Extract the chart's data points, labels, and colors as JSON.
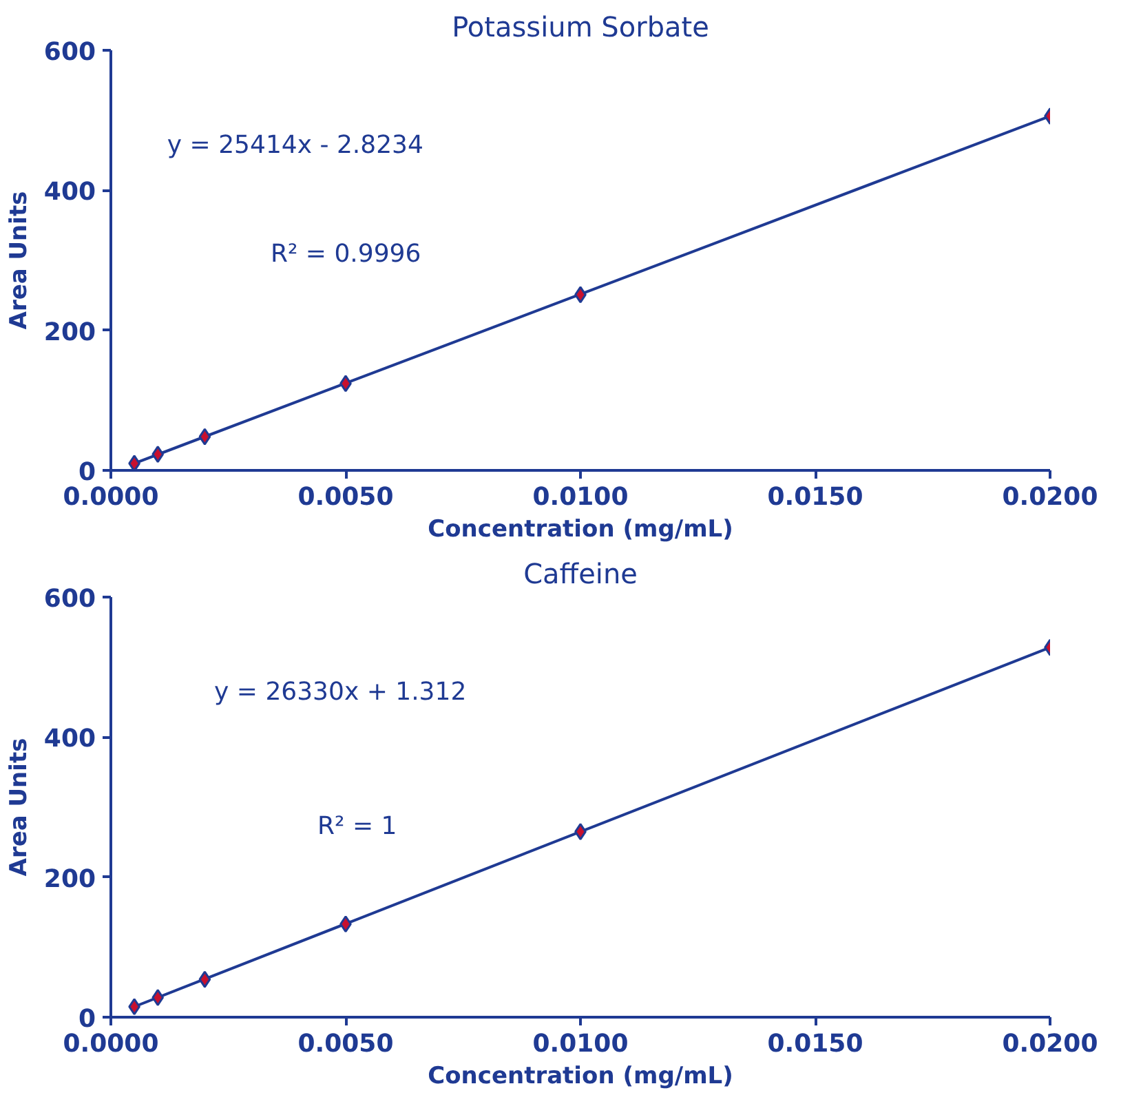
{
  "chart_data": [
    {
      "type": "scatter",
      "title": "Potassium Sorbate",
      "xlabel": "Concentration (mg/mL)",
      "ylabel": "Area Units",
      "xlim": [
        0,
        0.02
      ],
      "xticks": [
        {
          "value": 0,
          "label": "0.0000"
        },
        {
          "value": 0.005,
          "label": "0.0050"
        },
        {
          "value": 0.01,
          "label": "0.0100"
        },
        {
          "value": 0.015,
          "label": "0.0150"
        },
        {
          "value": 0.02,
          "label": "0.0200"
        }
      ],
      "ylim": [
        0,
        600
      ],
      "yticks": [
        0,
        200,
        400,
        600
      ],
      "grid": false,
      "annotations": [
        "y = 25414x - 2.8234",
        "R² = 0.9996"
      ],
      "series": [
        {
          "marker": "diamond",
          "color": "#c8102e",
          "x": [
            0.0005,
            0.001,
            0.002,
            0.005,
            0.01,
            0.02
          ],
          "values": [
            10,
            23,
            48,
            124,
            251,
            506
          ]
        },
        {
          "type": "line",
          "color": "#1f3a93",
          "x": [
            0.0005,
            0.02
          ],
          "values": [
            10,
            506
          ]
        }
      ]
    },
    {
      "type": "scatter",
      "title": "Caffeine",
      "xlabel": "Concentration (mg/mL)",
      "ylabel": "Area Units",
      "xlim": [
        0,
        0.02
      ],
      "xticks": [
        {
          "value": 0,
          "label": "0.0000"
        },
        {
          "value": 0.005,
          "label": "0.0050"
        },
        {
          "value": 0.01,
          "label": "0.0100"
        },
        {
          "value": 0.015,
          "label": "0.0150"
        },
        {
          "value": 0.02,
          "label": "0.0200"
        }
      ],
      "ylim": [
        0,
        600
      ],
      "yticks": [
        0,
        200,
        400,
        600
      ],
      "grid": false,
      "annotations": [
        "y = 26330x + 1.312",
        "R² = 1"
      ],
      "series": [
        {
          "marker": "diamond",
          "color": "#c8102e",
          "x": [
            0.0005,
            0.001,
            0.002,
            0.005,
            0.01,
            0.02
          ],
          "values": [
            15,
            28,
            54,
            133,
            265,
            528
          ]
        },
        {
          "type": "line",
          "color": "#1f3a93",
          "x": [
            0.0005,
            0.02
          ],
          "values": [
            15,
            528
          ]
        }
      ]
    }
  ]
}
